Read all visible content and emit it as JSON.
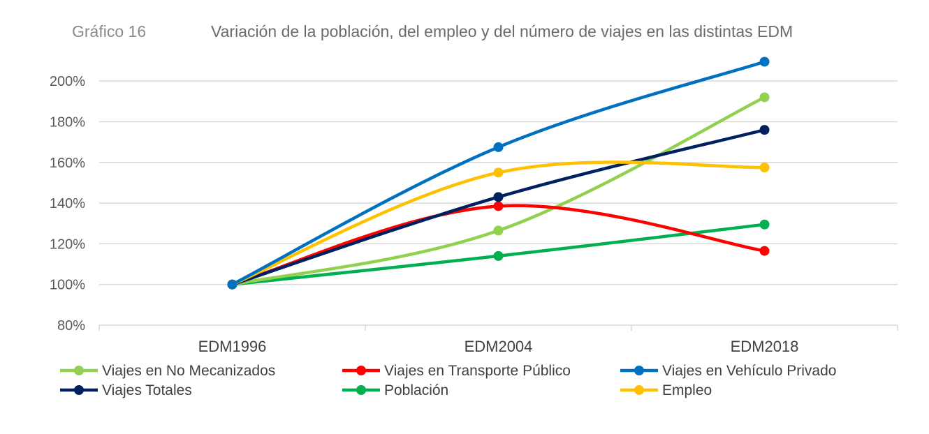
{
  "header": {
    "figure_label": "Gráfico 16",
    "title": "Variación de la población, del empleo y del número de viajes en las distintas EDM"
  },
  "chart_data": {
    "type": "line",
    "title": "Variación de la población, del empleo y del número de viajes en las distintas EDM",
    "xlabel": "",
    "ylabel": "",
    "categories": [
      "EDM1996",
      "EDM2004",
      "EDM2018"
    ],
    "ylim": [
      80,
      210
    ],
    "yticks": [
      80,
      100,
      120,
      140,
      160,
      180,
      200
    ],
    "ytick_labels": [
      "80%",
      "100%",
      "120%",
      "140%",
      "160%",
      "180%",
      "200%"
    ],
    "grid": true,
    "smooth": true,
    "legend_position": "bottom",
    "series": [
      {
        "name": "Viajes en No Mecanizados",
        "color": "#92d050",
        "values": [
          100,
          126.5,
          192
        ]
      },
      {
        "name": "Viajes en Transporte Público",
        "color": "#ff0000",
        "values": [
          100,
          138.5,
          116.5
        ]
      },
      {
        "name": "Viajes en Vehículo Privado",
        "color": "#0070c0",
        "values": [
          100,
          167.5,
          209.5
        ]
      },
      {
        "name": "Viajes Totales",
        "color": "#002060",
        "values": [
          100,
          143,
          176
        ]
      },
      {
        "name": "Población",
        "color": "#00b050",
        "values": [
          100,
          114,
          129.5
        ]
      },
      {
        "name": "Empleo",
        "color": "#ffc000",
        "values": [
          100,
          155,
          157.5
        ]
      }
    ]
  }
}
